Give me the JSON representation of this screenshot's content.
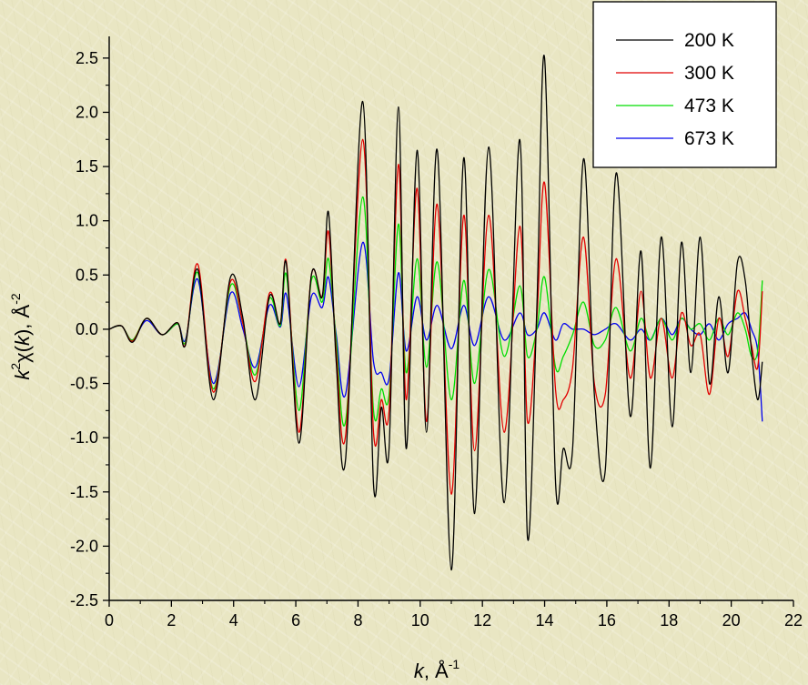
{
  "chart_data": {
    "type": "line",
    "xlabel": "k, Å-1",
    "ylabel": "k2χ(k), Å-2",
    "xlim": [
      0,
      22
    ],
    "ylim": [
      -2.5,
      2.7
    ],
    "x_ticks": [
      "0",
      "2",
      "4",
      "6",
      "8",
      "10",
      "12",
      "14",
      "16",
      "18",
      "20",
      "22"
    ],
    "y_ticks": [
      "-2.5",
      "-2.0",
      "-1.5",
      "-1.0",
      "-0.5",
      "0.0",
      "0.5",
      "1.0",
      "1.5",
      "2.0",
      "2.5"
    ],
    "legend_position": "top-right",
    "series": [
      {
        "name": "200 K",
        "color": "#000000",
        "x": [
          0,
          0.4,
          0.75,
          1.2,
          1.7,
          2.2,
          2.45,
          2.85,
          3.35,
          3.9,
          4.3,
          4.7,
          5.15,
          5.5,
          5.7,
          6.1,
          6.5,
          6.85,
          7.05,
          7.3,
          7.6,
          8.15,
          8.5,
          8.75,
          9.0,
          9.3,
          9.55,
          9.9,
          10.2,
          10.55,
          11.0,
          11.4,
          11.75,
          12.2,
          12.7,
          13.2,
          13.45,
          13.75,
          14.0,
          14.35,
          14.6,
          14.9,
          15.25,
          15.6,
          15.95,
          16.3,
          16.75,
          17.1,
          17.4,
          17.75,
          18.1,
          18.4,
          18.7,
          19.0,
          19.3,
          19.6,
          19.9,
          20.2,
          20.45,
          20.65,
          20.85,
          21.0
        ],
        "values": [
          0.0,
          0.03,
          -0.12,
          0.1,
          -0.05,
          0.06,
          -0.15,
          0.55,
          -0.65,
          0.48,
          0.1,
          -0.65,
          0.3,
          0.05,
          0.6,
          -1.05,
          0.5,
          0.3,
          1.08,
          -0.3,
          -1.2,
          2.1,
          -1.43,
          -0.72,
          -1.1,
          2.05,
          -1.1,
          1.65,
          -0.95,
          1.65,
          -2.22,
          1.58,
          -1.7,
          1.68,
          -1.6,
          1.75,
          -1.92,
          0.2,
          2.5,
          -1.4,
          -1.1,
          -1.1,
          1.57,
          -0.6,
          -1.3,
          1.44,
          -0.8,
          0.72,
          -1.28,
          0.85,
          -0.9,
          0.8,
          -0.4,
          0.85,
          -0.5,
          0.3,
          -0.4,
          0.62,
          0.45,
          -0.2,
          -0.65,
          -0.3
        ]
      },
      {
        "name": "300 K",
        "color": "#e00000",
        "x": [
          0,
          0.4,
          0.75,
          1.2,
          1.7,
          2.2,
          2.45,
          2.85,
          3.35,
          3.9,
          4.3,
          4.7,
          5.15,
          5.5,
          5.7,
          6.1,
          6.5,
          6.85,
          7.05,
          7.3,
          7.6,
          8.15,
          8.5,
          8.75,
          9.0,
          9.3,
          9.55,
          9.9,
          10.2,
          10.55,
          11.0,
          11.4,
          11.75,
          12.2,
          12.7,
          13.2,
          13.45,
          13.75,
          14.0,
          14.35,
          14.6,
          14.9,
          15.25,
          15.6,
          15.95,
          16.3,
          16.75,
          17.1,
          17.4,
          17.75,
          18.1,
          18.4,
          18.7,
          19.0,
          19.3,
          19.6,
          19.9,
          20.2,
          20.45,
          20.65,
          20.85,
          21.0
        ],
        "values": [
          0.0,
          0.03,
          -0.11,
          0.1,
          -0.05,
          0.06,
          -0.14,
          0.6,
          -0.58,
          0.44,
          0.05,
          -0.48,
          0.33,
          0.05,
          0.62,
          -0.95,
          0.5,
          0.3,
          0.9,
          -0.2,
          -0.98,
          1.75,
          -0.95,
          -0.65,
          -0.75,
          1.52,
          -0.65,
          1.3,
          -0.85,
          1.15,
          -1.52,
          1.05,
          -1.12,
          1.05,
          -0.95,
          0.95,
          -0.85,
          0.1,
          1.35,
          -0.55,
          -0.65,
          -0.35,
          0.85,
          -0.5,
          -0.6,
          0.65,
          -0.45,
          0.35,
          -0.45,
          0.1,
          -0.45,
          0.15,
          -0.15,
          -0.05,
          -0.6,
          0.1,
          -0.25,
          0.35,
          0.1,
          -0.15,
          -0.35,
          0.35
        ]
      },
      {
        "name": "473 K",
        "color": "#00dd00",
        "x": [
          0,
          0.4,
          0.75,
          1.2,
          1.7,
          2.2,
          2.45,
          2.85,
          3.35,
          3.9,
          4.3,
          4.7,
          5.15,
          5.5,
          5.7,
          6.1,
          6.5,
          6.85,
          7.05,
          7.3,
          7.6,
          8.15,
          8.5,
          8.75,
          9.0,
          9.3,
          9.55,
          9.9,
          10.2,
          10.55,
          11.0,
          11.4,
          11.75,
          12.2,
          12.7,
          13.2,
          13.45,
          13.75,
          14.0,
          14.35,
          14.6,
          14.9,
          15.25,
          15.6,
          15.95,
          16.3,
          16.75,
          17.1,
          17.4,
          17.75,
          18.1,
          18.4,
          18.7,
          19.0,
          19.3,
          19.6,
          19.9,
          20.2,
          20.45,
          20.65,
          20.85,
          21.0
        ],
        "values": [
          0.0,
          0.03,
          -0.1,
          0.1,
          -0.05,
          0.05,
          -0.12,
          0.52,
          -0.55,
          0.4,
          0.05,
          -0.42,
          0.28,
          0.03,
          0.5,
          -0.75,
          0.45,
          0.25,
          0.65,
          -0.1,
          -0.85,
          1.22,
          -0.75,
          -0.55,
          -0.6,
          0.97,
          -0.4,
          0.65,
          -0.35,
          0.62,
          -0.65,
          0.45,
          -0.5,
          0.55,
          -0.25,
          0.4,
          -0.25,
          0.0,
          0.48,
          -0.35,
          -0.25,
          -0.05,
          0.25,
          -0.15,
          -0.1,
          0.2,
          -0.2,
          0.1,
          -0.1,
          0.1,
          -0.1,
          0.1,
          0.0,
          0.05,
          -0.1,
          0.1,
          -0.05,
          0.15,
          0.0,
          -0.25,
          -0.2,
          0.45
        ]
      },
      {
        "name": "673 K",
        "color": "#0000ee",
        "x": [
          0,
          0.4,
          0.75,
          1.2,
          1.7,
          2.2,
          2.45,
          2.85,
          3.35,
          3.9,
          4.3,
          4.7,
          5.15,
          5.5,
          5.7,
          6.1,
          6.5,
          6.85,
          7.05,
          7.3,
          7.6,
          8.15,
          8.5,
          8.75,
          9.0,
          9.3,
          9.55,
          9.9,
          10.2,
          10.55,
          11.0,
          11.4,
          11.75,
          12.2,
          12.7,
          13.2,
          13.45,
          13.75,
          14.0,
          14.35,
          14.6,
          14.9,
          15.25,
          15.6,
          15.95,
          16.3,
          16.75,
          17.1,
          17.4,
          17.75,
          18.1,
          18.4,
          18.7,
          19.0,
          19.3,
          19.6,
          19.9,
          20.2,
          20.45,
          20.65,
          20.85,
          21.0
        ],
        "values": [
          0.0,
          0.03,
          -0.1,
          0.08,
          -0.05,
          0.05,
          -0.1,
          0.46,
          -0.5,
          0.33,
          0.0,
          -0.35,
          0.22,
          0.02,
          0.32,
          -0.53,
          0.3,
          0.2,
          0.48,
          -0.05,
          -0.6,
          0.8,
          -0.3,
          -0.4,
          -0.45,
          0.52,
          -0.2,
          0.3,
          -0.1,
          0.22,
          -0.18,
          0.22,
          -0.15,
          0.3,
          -0.1,
          0.15,
          -0.05,
          0.0,
          0.15,
          -0.1,
          0.05,
          0.0,
          0.0,
          -0.05,
          0.0,
          0.05,
          -0.1,
          0.0,
          -0.1,
          0.1,
          -0.05,
          0.1,
          0.0,
          -0.05,
          0.05,
          -0.1,
          0.05,
          0.1,
          0.15,
          0.0,
          -0.2,
          -0.85
        ]
      }
    ]
  }
}
